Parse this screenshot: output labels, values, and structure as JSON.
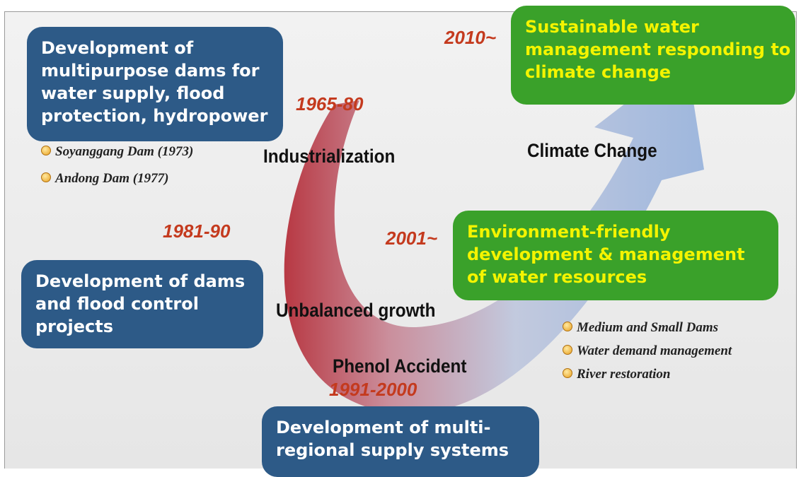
{
  "stages": [
    {
      "period": "1965-80",
      "driver": "Industrialization",
      "box": [
        "Development of",
        "multipurpose dams for",
        "water supply, flood",
        "protection, hydropower"
      ],
      "items": [
        "Soyanggang Dam (1973)",
        "Andong Dam (1977)"
      ]
    },
    {
      "period": "1981-90",
      "driver": "Unbalanced growth",
      "box": [
        "Development  of dams",
        "and flood control",
        "projects"
      ]
    },
    {
      "period": "1991-2000",
      "driver": "Phenol Accident",
      "box": [
        "Development  of multi-",
        "regional supply systems"
      ]
    },
    {
      "period": "2001~",
      "box": [
        "Environment-friendly",
        "development & management",
        "of water resources"
      ],
      "items": [
        "Medium and Small Dams",
        "Water demand management",
        "River restoration"
      ]
    },
    {
      "period": "2010~",
      "driver": "Climate Change",
      "box": [
        "Sustainable water",
        "management responding to",
        "climate change"
      ]
    }
  ]
}
